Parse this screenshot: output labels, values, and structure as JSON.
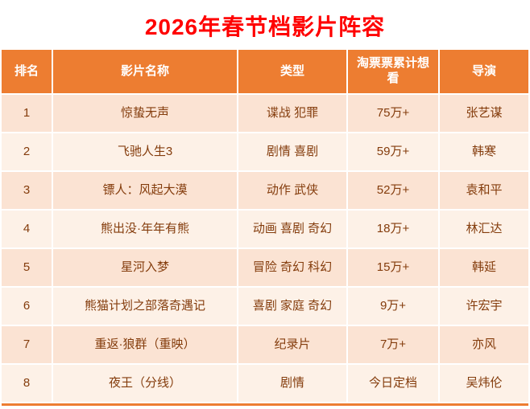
{
  "title": "2026年春节档影片阵容",
  "colors": {
    "title_text": "#FF0000",
    "header_bg": "#ED7D31",
    "header_text": "#FFFFFF",
    "row_odd_bg": "#FBE3D3",
    "row_even_bg": "#FDF1E7",
    "body_text": "#843C0C",
    "bottom_rule": "#ED7D31"
  },
  "table": {
    "headers": [
      "排名",
      "影片名称",
      "类型",
      "淘票票累计想看",
      "导演"
    ],
    "rows": [
      {
        "rank": "1",
        "title": "惊蛰无声",
        "genre": "谍战 犯罪",
        "want": "75万+",
        "director": "张艺谋"
      },
      {
        "rank": "2",
        "title": "飞驰人生3",
        "genre": "剧情 喜剧",
        "want": "59万+",
        "director": "韩寒"
      },
      {
        "rank": "3",
        "title": "镖人：风起大漠",
        "genre": "动作 武侠",
        "want": "52万+",
        "director": "袁和平"
      },
      {
        "rank": "4",
        "title": "熊出没·年年有熊",
        "genre": "动画 喜剧 奇幻",
        "want": "18万+",
        "director": "林汇达"
      },
      {
        "rank": "5",
        "title": "星河入梦",
        "genre": "冒险 奇幻 科幻",
        "want": "15万+",
        "director": "韩延"
      },
      {
        "rank": "6",
        "title": "熊猫计划之部落奇遇记",
        "genre": "喜剧 家庭 奇幻",
        "want": "9万+",
        "director": "许宏宇"
      },
      {
        "rank": "7",
        "title": "重返·狼群（重映）",
        "genre": "纪录片",
        "want": "7万+",
        "director": "亦风"
      },
      {
        "rank": "8",
        "title": "夜王（分线）",
        "genre": "剧情",
        "want": "今日定档",
        "director": "吴炜伦"
      }
    ]
  },
  "chart_data": {
    "type": "table",
    "title": "2026年春节档影片阵容",
    "columns": [
      "排名",
      "影片名称",
      "类型",
      "淘票票累计想看",
      "导演"
    ],
    "rows": [
      [
        "1",
        "惊蛰无声",
        "谍战 犯罪",
        "75万+",
        "张艺谋"
      ],
      [
        "2",
        "飞驰人生3",
        "剧情 喜剧",
        "59万+",
        "韩寒"
      ],
      [
        "3",
        "镖人：风起大漠",
        "动作 武侠",
        "52万+",
        "袁和平"
      ],
      [
        "4",
        "熊出没·年年有熊",
        "动画 喜剧 奇幻",
        "18万+",
        "林汇达"
      ],
      [
        "5",
        "星河入梦",
        "冒险 奇幻 科幻",
        "15万+",
        "韩延"
      ],
      [
        "6",
        "熊猫计划之部落奇遇记",
        "喜剧 家庭 奇幻",
        "9万+",
        "许宏宇"
      ],
      [
        "7",
        "重返·狼群（重映）",
        "纪录片",
        "7万+",
        "亦风"
      ],
      [
        "8",
        "夜王（分线）",
        "剧情",
        "今日定档",
        "吴炜伦"
      ]
    ]
  }
}
